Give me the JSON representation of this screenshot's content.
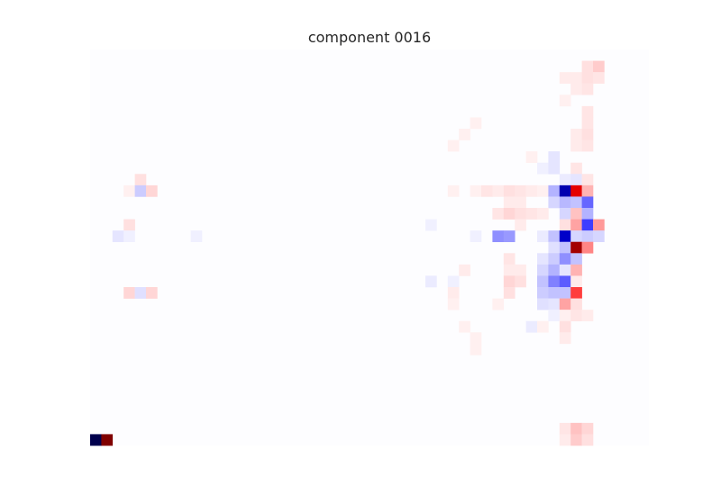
{
  "chart_data": {
    "type": "heatmap",
    "title": "component 0016",
    "colormap": "seismic",
    "vmin": -1,
    "vmax": 1,
    "n_rows": 35,
    "n_cols": 50,
    "axes_visible": false,
    "background": "#fdfdff",
    "cells": [
      {
        "row": 1,
        "col": 44,
        "value": 0.06
      },
      {
        "row": 1,
        "col": 45,
        "value": 0.1
      },
      {
        "row": 2,
        "col": 42,
        "value": 0.04
      },
      {
        "row": 2,
        "col": 43,
        "value": 0.04
      },
      {
        "row": 2,
        "col": 44,
        "value": 0.06
      },
      {
        "row": 2,
        "col": 45,
        "value": 0.05
      },
      {
        "row": 3,
        "col": 43,
        "value": 0.04
      },
      {
        "row": 3,
        "col": 44,
        "value": 0.05
      },
      {
        "row": 4,
        "col": 42,
        "value": 0.03
      },
      {
        "row": 5,
        "col": 44,
        "value": 0.05
      },
      {
        "row": 6,
        "col": 34,
        "value": 0.03
      },
      {
        "row": 6,
        "col": 44,
        "value": 0.05
      },
      {
        "row": 7,
        "col": 33,
        "value": 0.03
      },
      {
        "row": 7,
        "col": 43,
        "value": 0.04
      },
      {
        "row": 7,
        "col": 44,
        "value": 0.06
      },
      {
        "row": 8,
        "col": 32,
        "value": 0.03
      },
      {
        "row": 8,
        "col": 43,
        "value": 0.04
      },
      {
        "row": 8,
        "col": 44,
        "value": 0.05
      },
      {
        "row": 9,
        "col": 39,
        "value": 0.03
      },
      {
        "row": 9,
        "col": 41,
        "value": -0.05
      },
      {
        "row": 10,
        "col": 40,
        "value": -0.03
      },
      {
        "row": 10,
        "col": 41,
        "value": -0.05
      },
      {
        "row": 10,
        "col": 43,
        "value": 0.05
      },
      {
        "row": 11,
        "col": 4,
        "value": 0.06
      },
      {
        "row": 11,
        "col": 42,
        "value": -0.04
      },
      {
        "row": 11,
        "col": 43,
        "value": -0.05
      },
      {
        "row": 11,
        "col": 44,
        "value": 0.05
      },
      {
        "row": 12,
        "col": 3,
        "value": 0.03
      },
      {
        "row": 12,
        "col": 4,
        "value": -0.1
      },
      {
        "row": 12,
        "col": 5,
        "value": 0.08
      },
      {
        "row": 12,
        "col": 32,
        "value": 0.03
      },
      {
        "row": 12,
        "col": 34,
        "value": 0.03
      },
      {
        "row": 12,
        "col": 35,
        "value": 0.05
      },
      {
        "row": 12,
        "col": 36,
        "value": 0.04
      },
      {
        "row": 12,
        "col": 37,
        "value": 0.06
      },
      {
        "row": 12,
        "col": 38,
        "value": 0.05
      },
      {
        "row": 12,
        "col": 39,
        "value": 0.04
      },
      {
        "row": 12,
        "col": 40,
        "value": 0.03
      },
      {
        "row": 12,
        "col": 41,
        "value": -0.15
      },
      {
        "row": 12,
        "col": 42,
        "value": -0.72
      },
      {
        "row": 12,
        "col": 43,
        "value": 0.6
      },
      {
        "row": 12,
        "col": 44,
        "value": 0.15
      },
      {
        "row": 13,
        "col": 37,
        "value": 0.04
      },
      {
        "row": 13,
        "col": 38,
        "value": 0.04
      },
      {
        "row": 13,
        "col": 41,
        "value": -0.08
      },
      {
        "row": 13,
        "col": 42,
        "value": -0.14
      },
      {
        "row": 13,
        "col": 43,
        "value": -0.12
      },
      {
        "row": 13,
        "col": 44,
        "value": -0.3
      },
      {
        "row": 14,
        "col": 36,
        "value": 0.05
      },
      {
        "row": 14,
        "col": 37,
        "value": 0.08
      },
      {
        "row": 14,
        "col": 38,
        "value": 0.06
      },
      {
        "row": 14,
        "col": 39,
        "value": 0.05
      },
      {
        "row": 14,
        "col": 40,
        "value": 0.04
      },
      {
        "row": 14,
        "col": 42,
        "value": -0.08
      },
      {
        "row": 14,
        "col": 43,
        "value": 0.12
      },
      {
        "row": 14,
        "col": 44,
        "value": -0.15
      },
      {
        "row": 15,
        "col": 3,
        "value": 0.06
      },
      {
        "row": 15,
        "col": 30,
        "value": -0.03
      },
      {
        "row": 15,
        "col": 38,
        "value": 0.04
      },
      {
        "row": 15,
        "col": 42,
        "value": 0.06
      },
      {
        "row": 15,
        "col": 43,
        "value": 0.18
      },
      {
        "row": 15,
        "col": 44,
        "value": -0.38
      },
      {
        "row": 15,
        "col": 45,
        "value": 0.2
      },
      {
        "row": 16,
        "col": 2,
        "value": -0.05
      },
      {
        "row": 16,
        "col": 3,
        "value": -0.03
      },
      {
        "row": 16,
        "col": 9,
        "value": -0.03
      },
      {
        "row": 16,
        "col": 34,
        "value": -0.03
      },
      {
        "row": 16,
        "col": 36,
        "value": -0.22
      },
      {
        "row": 16,
        "col": 37,
        "value": -0.2
      },
      {
        "row": 16,
        "col": 40,
        "value": -0.04
      },
      {
        "row": 16,
        "col": 41,
        "value": -0.12
      },
      {
        "row": 16,
        "col": 42,
        "value": -0.65
      },
      {
        "row": 16,
        "col": 43,
        "value": -0.08
      },
      {
        "row": 16,
        "col": 44,
        "value": -0.1
      },
      {
        "row": 16,
        "col": 45,
        "value": -0.08
      },
      {
        "row": 17,
        "col": 41,
        "value": -0.06
      },
      {
        "row": 17,
        "col": 42,
        "value": -0.12
      },
      {
        "row": 17,
        "col": 43,
        "value": 0.86
      },
      {
        "row": 17,
        "col": 44,
        "value": 0.24
      },
      {
        "row": 18,
        "col": 37,
        "value": 0.05
      },
      {
        "row": 18,
        "col": 40,
        "value": -0.05
      },
      {
        "row": 18,
        "col": 41,
        "value": -0.1
      },
      {
        "row": 18,
        "col": 42,
        "value": -0.22
      },
      {
        "row": 18,
        "col": 43,
        "value": -0.12
      },
      {
        "row": 19,
        "col": 33,
        "value": 0.04
      },
      {
        "row": 19,
        "col": 37,
        "value": 0.04
      },
      {
        "row": 19,
        "col": 38,
        "value": 0.04
      },
      {
        "row": 19,
        "col": 40,
        "value": -0.08
      },
      {
        "row": 19,
        "col": 41,
        "value": -0.15
      },
      {
        "row": 19,
        "col": 42,
        "value": -0.05
      },
      {
        "row": 19,
        "col": 43,
        "value": 0.15
      },
      {
        "row": 20,
        "col": 30,
        "value": -0.04
      },
      {
        "row": 20,
        "col": 32,
        "value": -0.03
      },
      {
        "row": 20,
        "col": 37,
        "value": 0.08
      },
      {
        "row": 20,
        "col": 38,
        "value": 0.06
      },
      {
        "row": 20,
        "col": 40,
        "value": -0.12
      },
      {
        "row": 20,
        "col": 41,
        "value": -0.25
      },
      {
        "row": 20,
        "col": 42,
        "value": -0.32
      },
      {
        "row": 20,
        "col": 43,
        "value": 0.04
      },
      {
        "row": 21,
        "col": 3,
        "value": 0.08
      },
      {
        "row": 21,
        "col": 4,
        "value": -0.06
      },
      {
        "row": 21,
        "col": 5,
        "value": 0.08
      },
      {
        "row": 21,
        "col": 32,
        "value": 0.04
      },
      {
        "row": 21,
        "col": 37,
        "value": 0.06
      },
      {
        "row": 21,
        "col": 40,
        "value": -0.1
      },
      {
        "row": 21,
        "col": 41,
        "value": -0.12
      },
      {
        "row": 21,
        "col": 42,
        "value": -0.12
      },
      {
        "row": 21,
        "col": 43,
        "value": 0.38
      },
      {
        "row": 22,
        "col": 32,
        "value": 0.03
      },
      {
        "row": 22,
        "col": 36,
        "value": 0.03
      },
      {
        "row": 22,
        "col": 40,
        "value": -0.06
      },
      {
        "row": 22,
        "col": 41,
        "value": -0.05
      },
      {
        "row": 22,
        "col": 42,
        "value": 0.18
      },
      {
        "row": 22,
        "col": 43,
        "value": 0.06
      },
      {
        "row": 23,
        "col": 41,
        "value": -0.03
      },
      {
        "row": 23,
        "col": 42,
        "value": 0.03
      },
      {
        "row": 23,
        "col": 43,
        "value": 0.05
      },
      {
        "row": 23,
        "col": 44,
        "value": 0.04
      },
      {
        "row": 24,
        "col": 33,
        "value": 0.03
      },
      {
        "row": 24,
        "col": 39,
        "value": -0.04
      },
      {
        "row": 24,
        "col": 40,
        "value": 0.03
      },
      {
        "row": 24,
        "col": 42,
        "value": 0.06
      },
      {
        "row": 25,
        "col": 34,
        "value": 0.03
      },
      {
        "row": 25,
        "col": 42,
        "value": 0.04
      },
      {
        "row": 26,
        "col": 34,
        "value": 0.03
      },
      {
        "row": 33,
        "col": 42,
        "value": 0.05
      },
      {
        "row": 33,
        "col": 43,
        "value": 0.12
      },
      {
        "row": 33,
        "col": 44,
        "value": 0.08
      },
      {
        "row": 34,
        "col": 0,
        "value": -1.0
      },
      {
        "row": 34,
        "col": 1,
        "value": 1.0
      },
      {
        "row": 34,
        "col": 42,
        "value": 0.04
      },
      {
        "row": 34,
        "col": 43,
        "value": 0.1
      },
      {
        "row": 34,
        "col": 44,
        "value": 0.06
      }
    ]
  }
}
